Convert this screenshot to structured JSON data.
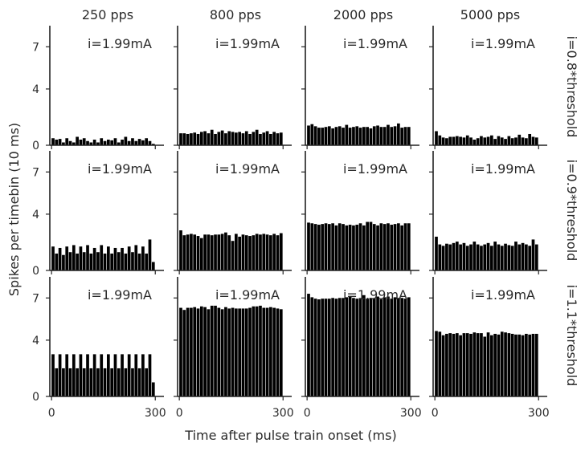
{
  "figure": {
    "ylabel": "Spikes per timebin (10 ms)",
    "xlabel": "Time after pulse train onset (ms)",
    "columns": [
      "250 pps",
      "800 pps",
      "2000 pps",
      "5000 pps"
    ],
    "rows": [
      "i=0.8*threshold",
      "i=0.9*threshold",
      "i=1.1*threshold"
    ]
  },
  "chart_data": {
    "type": "bar",
    "layout": "grid-3x4",
    "title": "",
    "xlabel": "Time after pulse train onset (ms)",
    "ylabel": "Spikes per timebin (10 ms)",
    "xlim": [
      -5,
      325
    ],
    "ylim": [
      0,
      8.5
    ],
    "xticks": [
      0,
      300
    ],
    "yticks": [
      0,
      4,
      7
    ],
    "bin_width_ms": 10,
    "bar_color": "#000000",
    "grid": false,
    "panels": [
      {
        "row": "i=0.8*threshold",
        "col": "250 pps",
        "annotation": "i=1.99mA",
        "x": [
          0,
          10,
          20,
          30,
          40,
          50,
          60,
          70,
          80,
          90,
          100,
          110,
          120,
          130,
          140,
          150,
          160,
          170,
          180,
          190,
          200,
          210,
          220,
          230,
          240,
          250,
          260,
          270,
          280,
          290
        ],
        "values": [
          0.5,
          0.4,
          0.45,
          0.2,
          0.5,
          0.3,
          0.2,
          0.6,
          0.4,
          0.5,
          0.3,
          0.2,
          0.4,
          0.2,
          0.5,
          0.3,
          0.4,
          0.35,
          0.5,
          0.2,
          0.4,
          0.6,
          0.3,
          0.5,
          0.3,
          0.45,
          0.35,
          0.5,
          0.3,
          0.1
        ]
      },
      {
        "row": "i=0.8*threshold",
        "col": "800 pps",
        "annotation": "i=1.99mA",
        "x": [
          0,
          10,
          20,
          30,
          40,
          50,
          60,
          70,
          80,
          90,
          100,
          110,
          120,
          130,
          140,
          150,
          160,
          170,
          180,
          190,
          200,
          210,
          220,
          230,
          240,
          250,
          260,
          270,
          280,
          290
        ],
        "values": [
          0.85,
          0.85,
          0.8,
          0.85,
          0.9,
          0.8,
          0.95,
          1.0,
          0.85,
          1.1,
          0.8,
          0.95,
          1.05,
          0.85,
          1.0,
          0.95,
          0.9,
          0.95,
          0.85,
          1.0,
          0.8,
          0.95,
          1.1,
          0.8,
          0.9,
          1.0,
          0.8,
          0.95,
          0.85,
          0.9
        ]
      },
      {
        "row": "i=0.8*threshold",
        "col": "2000 pps",
        "annotation": "i=1.99mA",
        "x": [
          0,
          10,
          20,
          30,
          40,
          50,
          60,
          70,
          80,
          90,
          100,
          110,
          120,
          130,
          140,
          150,
          160,
          170,
          180,
          190,
          200,
          210,
          220,
          230,
          240,
          250,
          260,
          270,
          280,
          290
        ],
        "values": [
          1.4,
          1.5,
          1.35,
          1.25,
          1.25,
          1.3,
          1.35,
          1.2,
          1.3,
          1.35,
          1.25,
          1.45,
          1.25,
          1.3,
          1.35,
          1.25,
          1.3,
          1.3,
          1.2,
          1.35,
          1.4,
          1.3,
          1.3,
          1.45,
          1.3,
          1.35,
          1.55,
          1.25,
          1.3,
          1.3
        ]
      },
      {
        "row": "i=0.8*threshold",
        "col": "5000 pps",
        "annotation": "i=1.99mA",
        "x": [
          0,
          10,
          20,
          30,
          40,
          50,
          60,
          70,
          80,
          90,
          100,
          110,
          120,
          130,
          140,
          150,
          160,
          170,
          180,
          190,
          200,
          210,
          220,
          230,
          240,
          250,
          260,
          270,
          280,
          290
        ],
        "values": [
          1.0,
          0.7,
          0.55,
          0.5,
          0.6,
          0.6,
          0.65,
          0.6,
          0.55,
          0.7,
          0.55,
          0.4,
          0.5,
          0.65,
          0.55,
          0.6,
          0.7,
          0.45,
          0.65,
          0.55,
          0.45,
          0.65,
          0.5,
          0.55,
          0.75,
          0.55,
          0.5,
          0.8,
          0.6,
          0.55
        ]
      },
      {
        "row": "i=0.9*threshold",
        "col": "250 pps",
        "annotation": "i=1.99mA",
        "x": [
          0,
          10,
          20,
          30,
          40,
          50,
          60,
          70,
          80,
          90,
          100,
          110,
          120,
          130,
          140,
          150,
          160,
          170,
          180,
          190,
          200,
          210,
          220,
          230,
          240,
          250,
          260,
          270,
          280,
          290
        ],
        "values": [
          1.7,
          1.2,
          1.6,
          1.1,
          1.7,
          1.3,
          1.8,
          1.2,
          1.7,
          1.3,
          1.8,
          1.2,
          1.6,
          1.3,
          1.8,
          1.2,
          1.7,
          1.2,
          1.6,
          1.3,
          1.6,
          1.2,
          1.7,
          1.3,
          1.8,
          1.2,
          1.7,
          1.2,
          2.2,
          0.6
        ]
      },
      {
        "row": "i=0.9*threshold",
        "col": "800 pps",
        "annotation": "i=1.99mA",
        "x": [
          0,
          10,
          20,
          30,
          40,
          50,
          60,
          70,
          80,
          90,
          100,
          110,
          120,
          130,
          140,
          150,
          160,
          170,
          180,
          190,
          200,
          210,
          220,
          230,
          240,
          250,
          260,
          270,
          280,
          290
        ],
        "values": [
          2.85,
          2.5,
          2.55,
          2.6,
          2.55,
          2.45,
          2.3,
          2.55,
          2.55,
          2.5,
          2.55,
          2.55,
          2.6,
          2.7,
          2.5,
          2.1,
          2.6,
          2.4,
          2.55,
          2.5,
          2.45,
          2.5,
          2.6,
          2.55,
          2.6,
          2.55,
          2.5,
          2.6,
          2.5,
          2.65
        ]
      },
      {
        "row": "i=0.9*threshold",
        "col": "2000 pps",
        "annotation": "i=1.99mA",
        "x": [
          0,
          10,
          20,
          30,
          40,
          50,
          60,
          70,
          80,
          90,
          100,
          110,
          120,
          130,
          140,
          150,
          160,
          170,
          180,
          190,
          200,
          210,
          220,
          230,
          240,
          250,
          260,
          270,
          280,
          290
        ],
        "values": [
          3.4,
          3.35,
          3.3,
          3.25,
          3.3,
          3.35,
          3.3,
          3.35,
          3.2,
          3.35,
          3.3,
          3.2,
          3.25,
          3.2,
          3.25,
          3.35,
          3.2,
          3.45,
          3.45,
          3.3,
          3.2,
          3.35,
          3.3,
          3.35,
          3.25,
          3.3,
          3.35,
          3.2,
          3.35,
          3.35
        ]
      },
      {
        "row": "i=0.9*threshold",
        "col": "5000 pps",
        "annotation": "i=1.99mA",
        "x": [
          0,
          10,
          20,
          30,
          40,
          50,
          60,
          70,
          80,
          90,
          100,
          110,
          120,
          130,
          140,
          150,
          160,
          170,
          180,
          190,
          200,
          210,
          220,
          230,
          240,
          250,
          260,
          270,
          280,
          290
        ],
        "values": [
          2.4,
          1.85,
          1.75,
          1.9,
          1.85,
          1.95,
          2.05,
          1.85,
          1.95,
          1.75,
          1.85,
          2.05,
          1.85,
          1.75,
          1.85,
          1.95,
          1.75,
          2.05,
          1.85,
          1.75,
          1.9,
          1.8,
          1.75,
          2.05,
          1.85,
          1.95,
          1.85,
          1.75,
          2.2,
          1.85
        ]
      },
      {
        "row": "i=1.1*threshold",
        "col": "250 pps",
        "annotation": "i=1.99mA",
        "x": [
          0,
          10,
          20,
          30,
          40,
          50,
          60,
          70,
          80,
          90,
          100,
          110,
          120,
          130,
          140,
          150,
          160,
          170,
          180,
          190,
          200,
          210,
          220,
          230,
          240,
          250,
          260,
          270,
          280,
          290
        ],
        "values": [
          3.0,
          2.0,
          3.0,
          2.0,
          3.0,
          2.0,
          3.0,
          2.0,
          3.0,
          2.0,
          3.0,
          2.0,
          3.0,
          2.0,
          3.0,
          2.0,
          3.0,
          2.0,
          3.0,
          2.0,
          3.0,
          2.0,
          3.0,
          2.0,
          3.0,
          2.0,
          3.0,
          2.0,
          3.0,
          1.0
        ]
      },
      {
        "row": "i=1.1*threshold",
        "col": "800 pps",
        "annotation": "i=1.99mA",
        "x": [
          0,
          10,
          20,
          30,
          40,
          50,
          60,
          70,
          80,
          90,
          100,
          110,
          120,
          130,
          140,
          150,
          160,
          170,
          180,
          190,
          200,
          210,
          220,
          230,
          240,
          250,
          260,
          270,
          280,
          290
        ],
        "values": [
          6.3,
          6.15,
          6.3,
          6.3,
          6.35,
          6.25,
          6.4,
          6.35,
          6.2,
          6.45,
          6.45,
          6.3,
          6.2,
          6.35,
          6.25,
          6.3,
          6.25,
          6.25,
          6.25,
          6.25,
          6.3,
          6.4,
          6.4,
          6.45,
          6.3,
          6.3,
          6.35,
          6.3,
          6.25,
          6.2
        ]
      },
      {
        "row": "i=1.1*threshold",
        "col": "2000 pps",
        "annotation": "i=1.99mA",
        "x": [
          0,
          10,
          20,
          30,
          40,
          50,
          60,
          70,
          80,
          90,
          100,
          110,
          120,
          130,
          140,
          150,
          160,
          170,
          180,
          190,
          200,
          210,
          220,
          230,
          240,
          250,
          260,
          270,
          280,
          290
        ],
        "values": [
          7.3,
          7.05,
          6.95,
          6.9,
          6.95,
          6.95,
          6.95,
          7.0,
          6.95,
          7.0,
          7.0,
          7.05,
          7.1,
          7.0,
          6.95,
          7.0,
          7.2,
          6.95,
          7.0,
          7.0,
          7.1,
          6.9,
          7.05,
          7.1,
          6.95,
          7.05,
          7.0,
          7.0,
          6.95,
          7.05
        ]
      },
      {
        "row": "i=1.1*threshold",
        "col": "5000 pps",
        "annotation": "i=1.99mA",
        "x": [
          0,
          10,
          20,
          30,
          40,
          50,
          60,
          70,
          80,
          90,
          100,
          110,
          120,
          130,
          140,
          150,
          160,
          170,
          180,
          190,
          200,
          210,
          220,
          230,
          240,
          250,
          260,
          270,
          280,
          290
        ],
        "values": [
          4.65,
          4.6,
          4.35,
          4.45,
          4.5,
          4.45,
          4.5,
          4.35,
          4.5,
          4.5,
          4.45,
          4.55,
          4.5,
          4.5,
          4.25,
          4.55,
          4.35,
          4.45,
          4.4,
          4.6,
          4.55,
          4.5,
          4.45,
          4.4,
          4.4,
          4.35,
          4.45,
          4.4,
          4.45,
          4.45
        ]
      }
    ]
  }
}
